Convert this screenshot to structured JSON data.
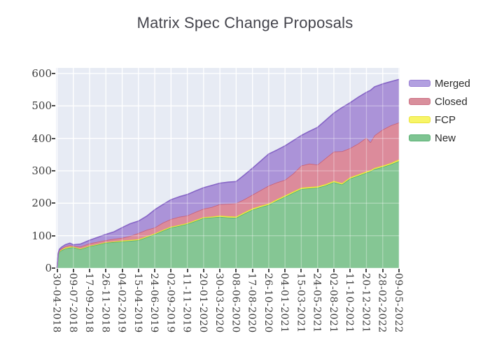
{
  "title": "Matrix Spec Change Proposals",
  "legend": {
    "items": [
      {
        "label": "Merged",
        "color": "#b2a0e0",
        "border": "#9a7fd4"
      },
      {
        "label": "Closed",
        "color": "#d98f9c",
        "border": "#cc7083"
      },
      {
        "label": "FCP",
        "color": "#f8f567",
        "border": "#e8e23a"
      },
      {
        "label": "New",
        "color": "#7ec492",
        "border": "#5bb274"
      }
    ]
  },
  "colors": {
    "page_bg": "#ffffff",
    "plot_bg": "#e7ebf4",
    "grid": "#ffffff",
    "tick": "#4a4a4a",
    "title_text": "#44444c",
    "tick_text": "#3c3c3c"
  },
  "chart_data": {
    "type": "area",
    "stacked": true,
    "title": "Matrix Spec Change Proposals",
    "xlabel": "",
    "ylabel": "",
    "x_unit": "days since 30-04-2018",
    "x": [
      0,
      5,
      10,
      20,
      35,
      55,
      70,
      100,
      140,
      175,
      210,
      245,
      280,
      315,
      350,
      385,
      420,
      455,
      490,
      525,
      560,
      595,
      630,
      665,
      700,
      735,
      770,
      805,
      840,
      875,
      910,
      945,
      980,
      1015,
      1050,
      1085,
      1120,
      1155,
      1190,
      1225,
      1260,
      1295,
      1330,
      1347,
      1365,
      1400,
      1435,
      1470
    ],
    "series": [
      {
        "name": "New",
        "fill": "#85c694",
        "line": "#4fae70",
        "values": [
          0,
          42,
          50,
          55,
          60,
          63,
          64,
          58,
          67,
          72,
          78,
          80,
          82,
          84,
          86,
          95,
          104,
          115,
          125,
          130,
          136,
          145,
          154,
          156,
          158,
          156,
          155,
          168,
          180,
          188,
          195,
          208,
          220,
          232,
          244,
          246,
          248,
          255,
          265,
          258,
          276,
          285,
          294,
          298,
          305,
          312,
          320,
          330
        ]
      },
      {
        "name": "FCP",
        "fill": "#f5f14c",
        "line": "#e4dd30",
        "values": [
          0,
          2,
          2,
          2,
          3,
          3,
          2,
          2,
          2,
          2,
          2,
          2,
          3,
          3,
          3,
          3,
          3,
          3,
          3,
          3,
          3,
          3,
          3,
          3,
          4,
          4,
          4,
          4,
          4,
          4,
          4,
          4,
          4,
          4,
          4,
          4,
          4,
          4,
          4,
          4,
          4,
          4,
          4,
          4,
          4,
          4,
          4,
          5
        ]
      },
      {
        "name": "Closed",
        "fill": "#dc8b9b",
        "line": "#c85f76",
        "values": [
          0,
          1,
          3,
          4,
          4,
          5,
          2,
          6,
          7,
          7,
          6,
          8,
          8,
          12,
          19,
          20,
          18,
          22,
          23,
          25,
          23,
          25,
          26,
          29,
          35,
          38,
          41,
          40,
          42,
          48,
          55,
          52,
          48,
          55,
          68,
          72,
          67,
          80,
          90,
          98,
          90,
          95,
          104,
          86,
          100,
          111,
          116,
          114
        ]
      },
      {
        "name": "Merged",
        "fill": "#ab93d8",
        "line": "#8665c6",
        "values": [
          0,
          1,
          3,
          4,
          5,
          6,
          4,
          8,
          10,
          14,
          18,
          22,
          32,
          38,
          37,
          42,
          55,
          56,
          60,
          62,
          65,
          65,
          65,
          67,
          65,
          67,
          67,
          75,
          82,
          90,
          98,
          100,
          105,
          102,
          93,
          100,
          115,
          117,
          119,
          135,
          140,
          143,
          140,
          160,
          150,
          141,
          135,
          133
        ]
      }
    ],
    "x_tick_days": [
      0,
      70,
      140,
      210,
      280,
      350,
      420,
      490,
      560,
      630,
      700,
      770,
      840,
      910,
      980,
      1050,
      1120,
      1190,
      1260,
      1330,
      1400,
      1470
    ],
    "x_tick_labels": [
      "30-04-2018",
      "09-07-2018",
      "17-09-2018",
      "26-11-2018",
      "04-02-2019",
      "15-04-2019",
      "24-06-2019",
      "02-09-2019",
      "11-11-2019",
      "20-01-2020",
      "30-03-2020",
      "08-06-2020",
      "17-08-2020",
      "26-10-2020",
      "04-01-2021",
      "15-03-2021",
      "24-05-2021",
      "02-08-2021",
      "11-10-2021",
      "20-12-2021",
      "28-02-2022",
      "09-05-2022"
    ],
    "yticks": [
      0,
      100,
      200,
      300,
      400,
      500,
      600
    ],
    "ylim": [
      0,
      617
    ],
    "xlim_days": [
      0,
      1470
    ],
    "grid": true,
    "legend_position": "right",
    "legend_order_top_to_bottom": [
      "Merged",
      "Closed",
      "FCP",
      "New"
    ]
  }
}
